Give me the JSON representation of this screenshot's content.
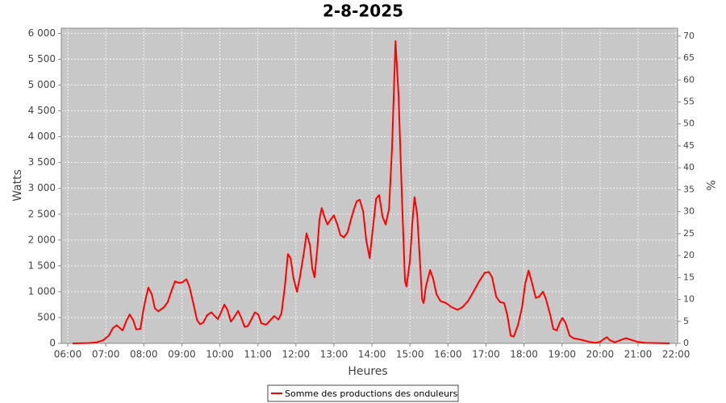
{
  "chart_data": {
    "type": "line",
    "title": "2-8-2025",
    "x_label": "Heures",
    "y_label": "Watts",
    "y2_label": "%",
    "xlim": [
      5.83,
      22.04
    ],
    "ylim": [
      0,
      6100
    ],
    "y2lim": [
      0,
      71.8
    ],
    "xticks": [
      {
        "value": 6,
        "label": "06:00"
      },
      {
        "value": 7,
        "label": "07:00"
      },
      {
        "value": 8,
        "label": "08:00"
      },
      {
        "value": 9,
        "label": "09:00"
      },
      {
        "value": 10,
        "label": "10:00"
      },
      {
        "value": 11,
        "label": "11:00"
      },
      {
        "value": 12,
        "label": "12:00"
      },
      {
        "value": 13,
        "label": "13:00"
      },
      {
        "value": 14,
        "label": "14:00"
      },
      {
        "value": 15,
        "label": "15:00"
      },
      {
        "value": 16,
        "label": "16:00"
      },
      {
        "value": 17,
        "label": "17:00"
      },
      {
        "value": 18,
        "label": "18:00"
      },
      {
        "value": 19,
        "label": "19:00"
      },
      {
        "value": 20,
        "label": "20:00"
      },
      {
        "value": 21,
        "label": "21:00"
      },
      {
        "value": 22,
        "label": "22:00"
      }
    ],
    "yticks": [
      0,
      500,
      {
        "value": 1000,
        "label": "1 000"
      },
      {
        "value": 1500,
        "label": "1 500"
      },
      {
        "value": 2000,
        "label": "2 000"
      },
      {
        "value": 2500,
        "label": "2 500"
      },
      {
        "value": 3000,
        "label": "3 000"
      },
      {
        "value": 3500,
        "label": "3 500"
      },
      {
        "value": 4000,
        "label": "4 000"
      },
      {
        "value": 4500,
        "label": "4 500"
      },
      {
        "value": 5000,
        "label": "5 000"
      },
      {
        "value": 5500,
        "label": "5 500"
      },
      {
        "value": 6000,
        "label": "6 000"
      }
    ],
    "y2ticks": [
      0,
      5,
      10,
      15,
      20,
      25,
      30,
      35,
      40,
      45,
      50,
      55,
      60,
      65,
      70
    ],
    "grid": true,
    "legend": "bottom",
    "x": [
      6.13,
      6.55,
      6.76,
      6.93,
      7.08,
      7.19,
      7.29,
      7.44,
      7.55,
      7.63,
      7.72,
      7.8,
      7.91,
      7.99,
      8.06,
      8.12,
      8.21,
      8.29,
      8.38,
      8.53,
      8.63,
      8.72,
      8.82,
      8.93,
      9.01,
      9.12,
      9.2,
      9.31,
      9.4,
      9.48,
      9.56,
      9.67,
      9.78,
      9.86,
      9.95,
      10.03,
      10.12,
      10.2,
      10.29,
      10.37,
      10.48,
      10.56,
      10.65,
      10.73,
      10.82,
      10.92,
      11.01,
      11.09,
      11.22,
      11.33,
      11.43,
      11.54,
      11.62,
      11.71,
      11.79,
      11.86,
      11.94,
      12.03,
      12.11,
      12.22,
      12.28,
      12.37,
      12.43,
      12.49,
      12.56,
      12.62,
      12.68,
      12.75,
      12.83,
      12.92,
      13.0,
      13.09,
      13.17,
      13.26,
      13.36,
      13.45,
      13.53,
      13.6,
      13.68,
      13.77,
      13.85,
      13.94,
      14.02,
      14.11,
      14.19,
      14.28,
      14.36,
      14.45,
      14.53,
      14.62,
      14.7,
      14.79,
      14.87,
      14.91,
      15.0,
      15.06,
      15.12,
      15.19,
      15.27,
      15.32,
      15.36,
      15.42,
      15.53,
      15.61,
      15.7,
      15.8,
      15.95,
      16.1,
      16.25,
      16.38,
      16.53,
      16.67,
      16.82,
      16.97,
      17.08,
      17.16,
      17.27,
      17.37,
      17.48,
      17.56,
      17.65,
      17.73,
      17.84,
      17.95,
      18.03,
      18.12,
      18.2,
      18.31,
      18.39,
      18.5,
      18.58,
      18.69,
      18.77,
      18.86,
      18.94,
      19.01,
      19.09,
      19.2,
      19.3,
      19.5,
      19.71,
      19.88,
      20.01,
      20.09,
      20.18,
      20.26,
      20.39,
      20.56,
      20.68,
      20.81,
      20.98,
      21.19,
      21.83
    ],
    "series": [
      {
        "name": "Somme des productions des onduleurs",
        "color": "#ff0000",
        "values": [
          0,
          5,
          20,
          60,
          150,
          300,
          350,
          250,
          450,
          560,
          450,
          270,
          280,
          650,
          900,
          1080,
          950,
          680,
          620,
          700,
          800,
          1000,
          1200,
          1170,
          1180,
          1240,
          1100,
          750,
          450,
          370,
          400,
          550,
          600,
          530,
          470,
          600,
          750,
          650,
          420,
          500,
          630,
          500,
          320,
          330,
          450,
          600,
          560,
          390,
          360,
          450,
          530,
          460,
          580,
          1100,
          1730,
          1650,
          1250,
          1000,
          1300,
          1800,
          2130,
          1900,
          1450,
          1280,
          1800,
          2400,
          2620,
          2450,
          2300,
          2400,
          2480,
          2300,
          2100,
          2050,
          2150,
          2400,
          2600,
          2750,
          2780,
          2550,
          2000,
          1650,
          2200,
          2800,
          2870,
          2450,
          2300,
          2600,
          3800,
          5850,
          4800,
          2800,
          1200,
          1100,
          1600,
          2300,
          2830,
          2500,
          1500,
          850,
          780,
          1100,
          1420,
          1250,
          950,
          820,
          780,
          700,
          650,
          700,
          820,
          1000,
          1200,
          1370,
          1380,
          1280,
          900,
          800,
          780,
          550,
          150,
          130,
          350,
          700,
          1150,
          1410,
          1200,
          880,
          900,
          1000,
          850,
          550,
          280,
          250,
          400,
          490,
          400,
          150,
          100,
          70,
          30,
          10,
          30,
          80,
          120,
          60,
          20,
          70,
          100,
          70,
          30,
          10,
          0
        ]
      }
    ]
  }
}
